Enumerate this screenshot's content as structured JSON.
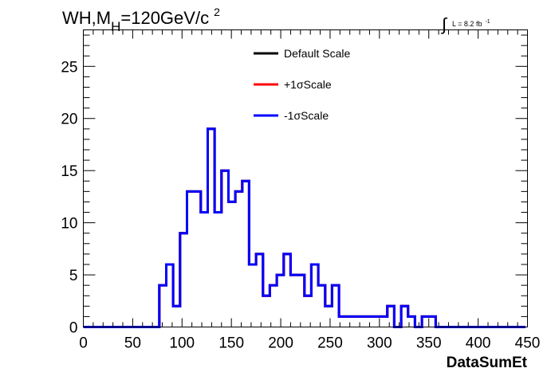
{
  "chart_data": {
    "type": "histogram",
    "title": {
      "main": "WH,M",
      "subscript": "H",
      "rest": "=120GeV/c",
      "superscript": "2"
    },
    "luminosity": {
      "integral": "∫",
      "text": "L = 8.2 fb",
      "superscript": "-1"
    },
    "xlabel": "DataSumEt",
    "ylabel": "",
    "xlim": [
      0,
      450
    ],
    "ylim": [
      0,
      28.5
    ],
    "x_ticks": [
      0,
      50,
      100,
      150,
      200,
      250,
      300,
      350,
      400,
      450
    ],
    "x_tick_labels": [
      "0",
      "50",
      "100",
      "150",
      "200",
      "250",
      "300",
      "350",
      "400",
      "450"
    ],
    "y_ticks": [
      0,
      5,
      10,
      15,
      20,
      25
    ],
    "y_tick_labels": [
      "0",
      "5",
      "10",
      "15",
      "20",
      "25"
    ],
    "bin_edges": [
      0,
      7,
      14,
      21,
      28,
      35,
      42,
      49,
      56,
      63,
      70,
      77,
      84,
      91,
      98,
      105,
      112,
      119,
      126,
      133,
      140,
      147,
      154,
      161,
      168,
      175,
      182,
      189,
      196,
      203,
      210,
      217,
      224,
      231,
      238,
      245,
      252,
      259,
      266,
      273,
      280,
      287,
      294,
      301,
      308,
      315,
      322,
      329,
      336,
      343,
      350,
      357,
      364,
      371,
      378,
      385,
      392,
      399,
      406,
      413,
      420,
      427,
      434,
      441,
      448
    ],
    "series": [
      {
        "name": "Default Scale",
        "color": "#000000",
        "values": [
          0,
          0,
          0,
          0,
          0,
          0,
          0,
          0,
          0,
          0,
          0,
          4,
          6,
          2,
          9,
          13,
          13,
          11,
          19,
          11,
          15,
          12,
          13,
          14,
          6,
          7,
          3,
          4,
          5,
          7,
          5,
          5,
          3,
          6,
          4,
          2,
          4,
          1,
          1,
          1,
          1,
          1,
          1,
          1,
          2,
          0,
          2,
          1,
          0,
          1,
          1,
          0,
          0,
          0,
          0,
          0,
          0,
          0,
          0,
          0,
          0,
          0,
          0,
          0
        ]
      },
      {
        "name": "+1σScale",
        "color": "#ff0000",
        "values": [
          0,
          0,
          0,
          0,
          0,
          0,
          0,
          0,
          0,
          0,
          0,
          4,
          6,
          2,
          9,
          13,
          13,
          11,
          19,
          11,
          15,
          12,
          13,
          14,
          6,
          7,
          3,
          4,
          5,
          7,
          5,
          5,
          3,
          6,
          4,
          2,
          4,
          1,
          1,
          1,
          1,
          1,
          1,
          1,
          2,
          0,
          2,
          1,
          0,
          1,
          1,
          0,
          0,
          0,
          0,
          0,
          0,
          0,
          0,
          0,
          0,
          0,
          0,
          0
        ]
      },
      {
        "name": "-1σScale",
        "color": "#0000ff",
        "values": [
          0,
          0,
          0,
          0,
          0,
          0,
          0,
          0,
          0,
          0,
          0,
          4,
          6,
          2,
          9,
          13,
          13,
          11,
          19,
          11,
          15,
          12,
          13,
          14,
          6,
          7,
          3,
          4,
          5,
          7,
          5,
          5,
          3,
          6,
          4,
          2,
          4,
          1,
          1,
          1,
          1,
          1,
          1,
          1,
          2,
          0,
          2,
          1,
          0,
          1,
          1,
          0,
          0,
          0,
          0,
          0,
          0,
          0,
          0,
          0,
          0,
          0,
          0,
          0
        ]
      }
    ],
    "legend_position": "top-center",
    "grid": false
  }
}
